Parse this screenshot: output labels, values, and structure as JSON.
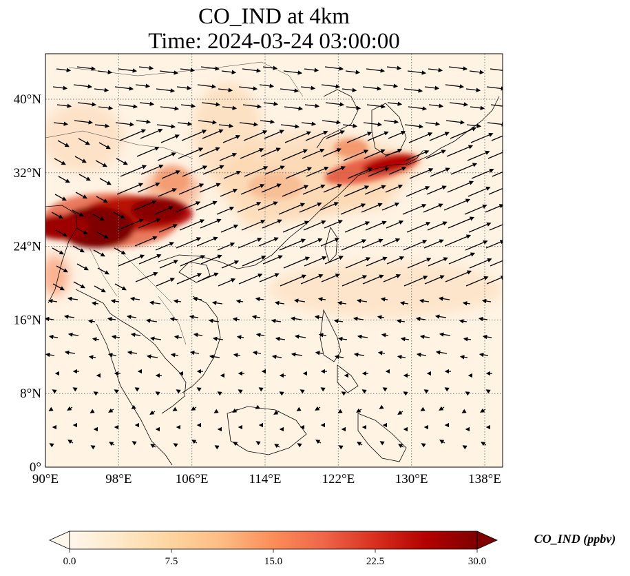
{
  "title": {
    "line1": "CO_IND at 4km",
    "line2": "Time: 2024-03-24 03:00:00"
  },
  "map": {
    "lon_range": [
      90,
      140
    ],
    "lat_range": [
      0,
      45
    ],
    "lon_ticks": [
      "90°E",
      "98°E",
      "106°E",
      "114°E",
      "122°E",
      "130°E",
      "138°E"
    ],
    "lon_tick_values": [
      90,
      98,
      106,
      114,
      122,
      130,
      138
    ],
    "lat_ticks": [
      "0°",
      "8°N",
      "16°N",
      "24°N",
      "32°N",
      "40°N"
    ],
    "lat_tick_values": [
      0,
      8,
      16,
      24,
      32,
      40
    ],
    "gridlines": true,
    "coastlines": true,
    "wind_vectors": true
  },
  "colorbar": {
    "label": "CO_IND (ppbv)",
    "ticks": [
      "0.0",
      "7.5",
      "15.0",
      "22.5",
      "30.0"
    ],
    "tick_values": [
      0,
      7.5,
      15,
      22.5,
      30
    ],
    "range": [
      0,
      30
    ],
    "extend": "both",
    "colormap": "OrRd",
    "colors": [
      "#fff7ec",
      "#fee8c8",
      "#fdd49e",
      "#fdbb84",
      "#fc8d59",
      "#ef6548",
      "#d7301f",
      "#b30000",
      "#7f0000"
    ]
  }
}
